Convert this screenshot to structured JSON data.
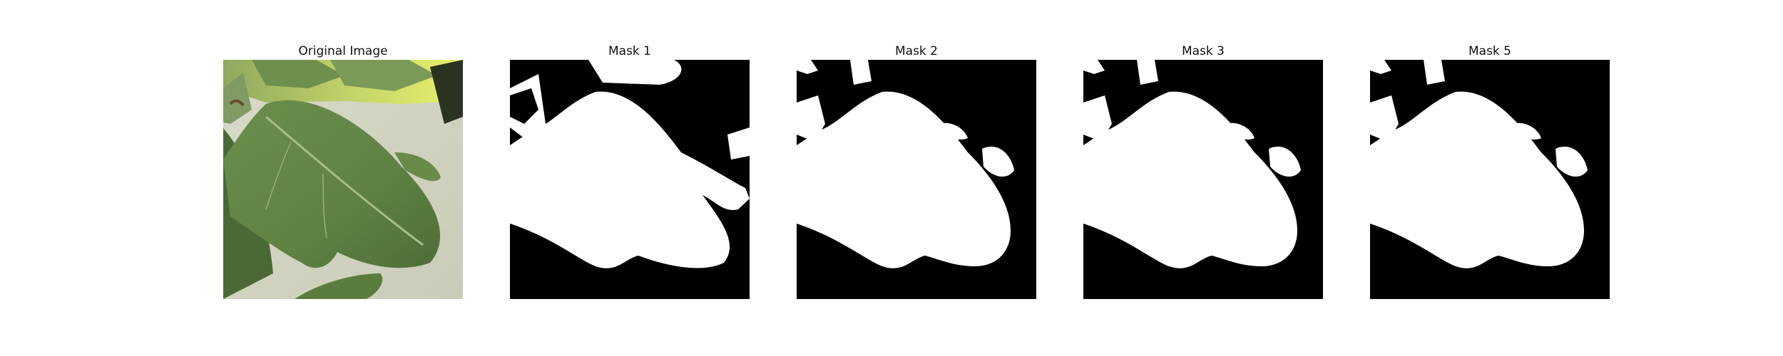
{
  "figure": {
    "panels": [
      {
        "title": "Original Image",
        "kind": "photo",
        "content": "leaf-photo"
      },
      {
        "title": "Mask 1",
        "kind": "mask",
        "content": "leaf-mask",
        "variant": 1
      },
      {
        "title": "Mask 2",
        "kind": "mask",
        "content": "leaf-mask",
        "variant": 2
      },
      {
        "title": "Mask 3",
        "kind": "mask",
        "content": "leaf-mask",
        "variant": 3
      },
      {
        "title": "Mask 5",
        "kind": "mask",
        "content": "leaf-mask",
        "variant": 5
      }
    ]
  },
  "colors": {
    "page_background": "#ffffff",
    "mask_background": "#000000",
    "mask_foreground": "#ffffff",
    "leaf_green": "#6f8f4f",
    "leaf_dark": "#4f6b36",
    "background_light": "#d9dcc8",
    "highlight_yellow": "#e8f06a"
  }
}
